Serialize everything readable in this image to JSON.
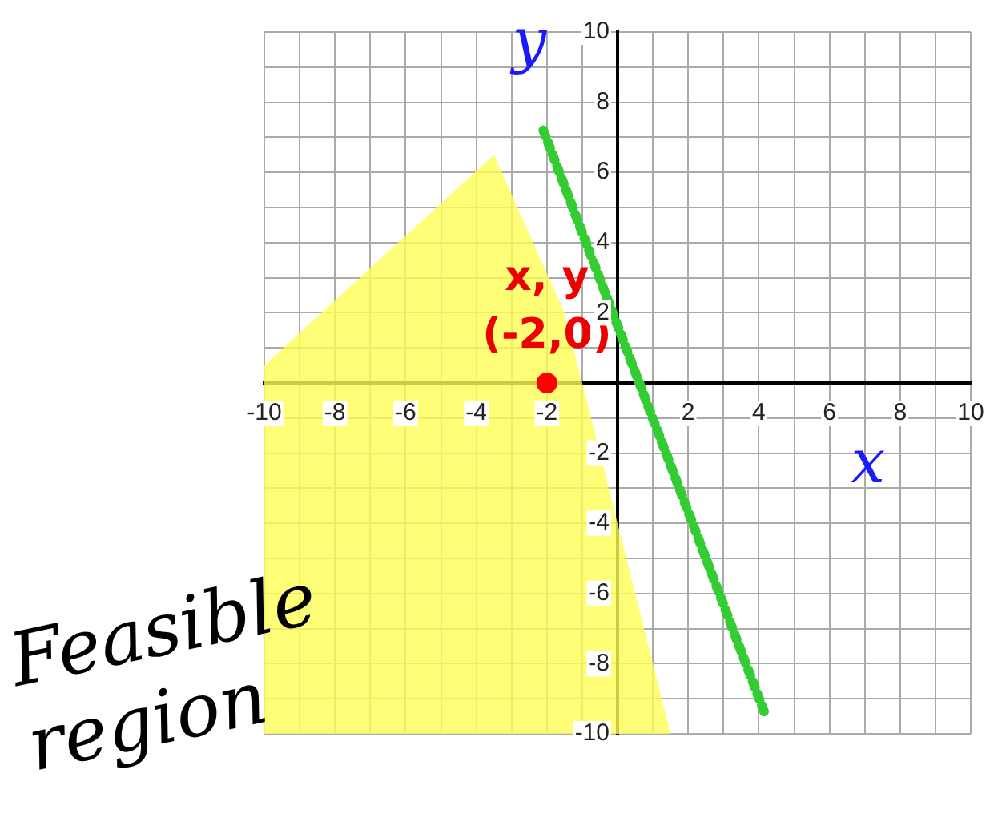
{
  "chart_data": {
    "type": "line",
    "xlabel": "x",
    "ylabel": "y",
    "xlim": [
      -10,
      10
    ],
    "ylim": [
      -10,
      10
    ],
    "xticks": [
      -10,
      {
        "value": -9,
        "label": null
      },
      -8,
      {
        "value": -7,
        "label": null
      },
      -6,
      {
        "value": -5,
        "label": null
      },
      -4,
      {
        "value": -3,
        "label": null
      },
      -2,
      {
        "value": -1,
        "label": null
      },
      {
        "value": 0,
        "label": null
      },
      {
        "value": 1,
        "label": null
      },
      2,
      {
        "value": 3,
        "label": null
      },
      4,
      {
        "value": 5,
        "label": null
      },
      6,
      {
        "value": 7,
        "label": null
      },
      8,
      {
        "value": 9,
        "label": null
      },
      10
    ],
    "yticks": [
      -10,
      {
        "value": -9,
        "label": null
      },
      -8,
      {
        "value": -7,
        "label": null
      },
      -6,
      {
        "value": -5,
        "label": null
      },
      -4,
      {
        "value": -3,
        "label": null
      },
      -2,
      {
        "value": -1,
        "label": null
      },
      {
        "value": 0,
        "label": null
      },
      {
        "value": 1,
        "label": null
      },
      2,
      {
        "value": 3,
        "label": null
      },
      4,
      {
        "value": 5,
        "label": null
      },
      6,
      {
        "value": 7,
        "label": null
      },
      8,
      {
        "value": 9,
        "label": null
      },
      10
    ],
    "grid": true,
    "legend": false,
    "series": [
      {
        "type": "area",
        "color": "#ffff55",
        "x": [
          -10,
          -10,
          -3.5,
          -1.5,
          1.5
        ],
        "values": [
          -10,
          0.5,
          6.5,
          2,
          -10
        ]
      },
      {
        "color": "#33cc33",
        "line_style": "dotted",
        "marker": "none",
        "x": [
          -2.1,
          4.2
        ],
        "values": [
          7.2,
          -9.5
        ]
      },
      {
        "type": "scatter",
        "color": "#ff0000",
        "marker": "circle",
        "x": [
          -2
        ],
        "values": [
          0
        ]
      }
    ],
    "annotations": [
      {
        "text": "(-2,0)",
        "x": -2,
        "y": 0
      },
      {
        "text": "x, y",
        "x": -2,
        "y": 0
      },
      "Feasible region"
    ]
  }
}
